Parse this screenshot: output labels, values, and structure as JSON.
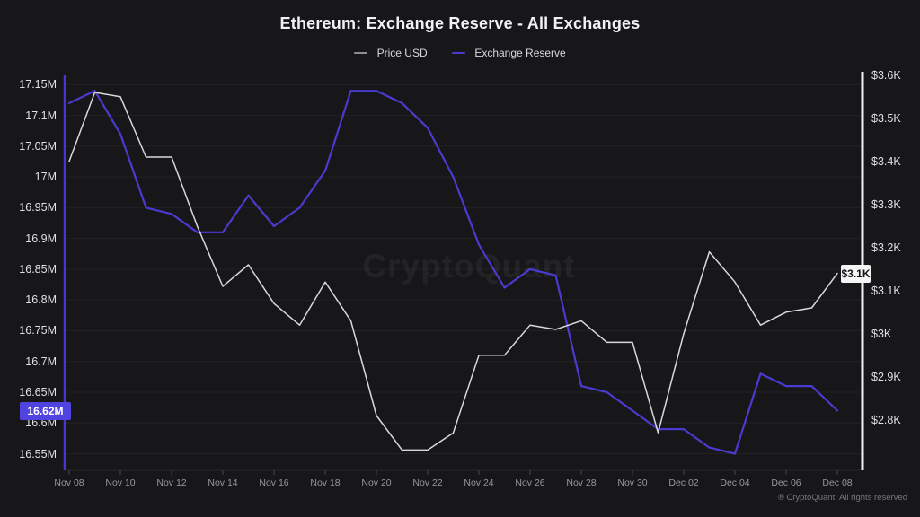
{
  "header": {
    "title": "Ethereum: Exchange Reserve - All Exchanges"
  },
  "legend": {
    "items": [
      {
        "label": "Price USD",
        "color": "#8e8e94"
      },
      {
        "label": "Exchange Reserve",
        "color": "#4a3bd0"
      }
    ]
  },
  "watermark": "CryptoQuant",
  "footer": "® CryptoQuant. All rights reserved",
  "colors": {
    "background": "#17171a",
    "price_line": "#d9d9db",
    "reserve_line": "#4a3bd0",
    "left_axis_line": "#4537cf",
    "right_axis_line": "#f0f0f2",
    "gridline": "rgba(255,255,255,0.05)",
    "x_tick": "#45454c",
    "badge_reserve_bg": "#5143e0",
    "badge_price_bg": "#f5f5f6"
  },
  "chart_data": {
    "type": "line",
    "title": "Ethereum: Exchange Reserve - All Exchanges",
    "x_dates": [
      "Nov 08",
      "Nov 09",
      "Nov 10",
      "Nov 11",
      "Nov 12",
      "Nov 13",
      "Nov 14",
      "Nov 15",
      "Nov 16",
      "Nov 17",
      "Nov 18",
      "Nov 19",
      "Nov 20",
      "Nov 21",
      "Nov 22",
      "Nov 23",
      "Nov 24",
      "Nov 25",
      "Nov 26",
      "Nov 27",
      "Nov 28",
      "Nov 29",
      "Nov 30",
      "Dec 01",
      "Dec 02",
      "Dec 03",
      "Dec 04",
      "Dec 05",
      "Dec 06",
      "Dec 07",
      "Dec 08"
    ],
    "x_tick_labels": [
      "Nov 08",
      "Nov 10",
      "Nov 12",
      "Nov 14",
      "Nov 16",
      "Nov 18",
      "Nov 20",
      "Nov 22",
      "Nov 24",
      "Nov 26",
      "Nov 28",
      "Nov 30",
      "Dec 02",
      "Dec 04",
      "Dec 06",
      "Dec 08"
    ],
    "series": [
      {
        "name": "Price USD",
        "axis": "right",
        "unit": "USD thousands",
        "color": "#d9d9db",
        "values": [
          3.4,
          3.56,
          3.55,
          3.41,
          3.41,
          3.25,
          3.11,
          3.16,
          3.07,
          3.02,
          3.12,
          3.03,
          2.81,
          2.73,
          2.73,
          2.77,
          2.95,
          2.95,
          3.02,
          3.01,
          3.03,
          2.98,
          2.98,
          2.77,
          3.0,
          3.19,
          3.12,
          3.02,
          3.05,
          3.06,
          3.14
        ]
      },
      {
        "name": "Exchange Reserve",
        "axis": "left",
        "unit": "ETH millions",
        "color": "#4a3bd0",
        "values": [
          17.12,
          17.14,
          17.07,
          16.95,
          16.94,
          16.91,
          16.91,
          16.97,
          16.92,
          16.95,
          17.01,
          17.14,
          17.14,
          17.12,
          17.08,
          17.0,
          16.89,
          16.82,
          16.85,
          16.84,
          16.66,
          16.65,
          16.62,
          16.59,
          16.59,
          16.56,
          16.55,
          16.68,
          16.66,
          16.66,
          16.62
        ]
      }
    ],
    "left_axis": {
      "tick_labels": [
        "17.15M",
        "17.1M",
        "17.05M",
        "17M",
        "16.95M",
        "16.9M",
        "16.85M",
        "16.8M",
        "16.75M",
        "16.7M",
        "16.65M",
        "16.6M",
        "16.55M"
      ],
      "tick_values": [
        17.15,
        17.1,
        17.05,
        17.0,
        16.95,
        16.9,
        16.85,
        16.8,
        16.75,
        16.7,
        16.65,
        16.6,
        16.55
      ],
      "range": [
        16.523,
        17.171
      ],
      "current_badge": "16.62M"
    },
    "right_axis": {
      "tick_labels": [
        "$3.6K",
        "$3.5K",
        "$3.4K",
        "$3.3K",
        "$3.2K",
        "$3.1K",
        "$3K",
        "$2.9K",
        "$2.8K"
      ],
      "tick_values": [
        3.6,
        3.5,
        3.4,
        3.3,
        3.2,
        3.1,
        3.0,
        2.9,
        2.8
      ],
      "range": [
        2.683,
        3.608
      ],
      "current_badge": "$3.1K"
    },
    "grid": "horizontal-only",
    "legend_position": "top"
  }
}
